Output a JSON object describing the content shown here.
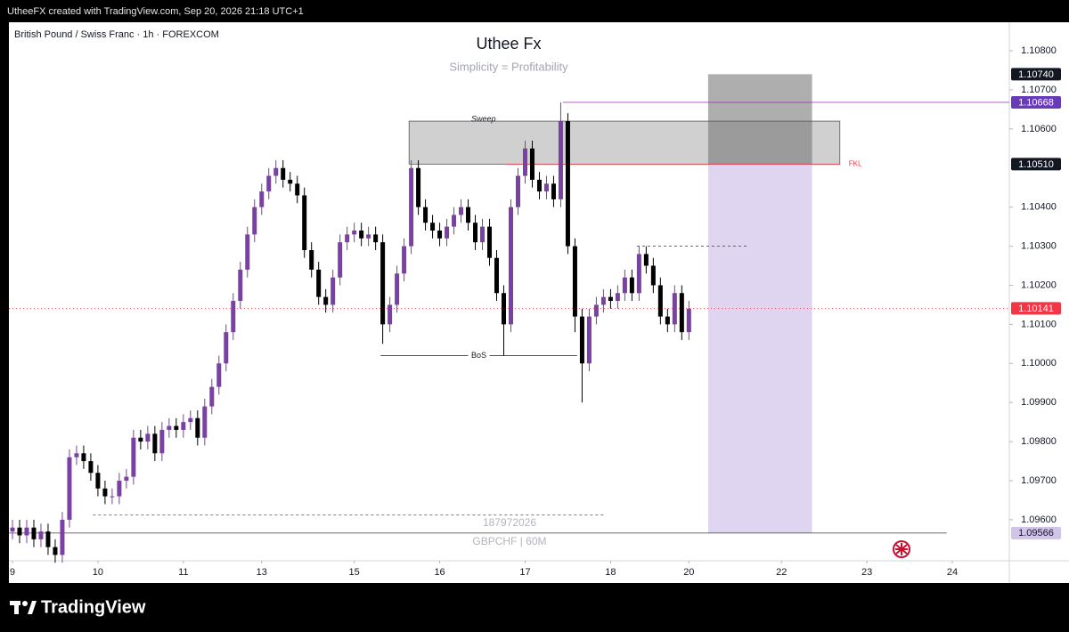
{
  "header": "UtheeFX created with TradingView.com, Sep 20, 2026 21:18 UTC+1",
  "brand": "TradingView",
  "chart_data": {
    "type": "candlestick",
    "symbol": "British Pound / Swiss Franc · 1h · FOREXCOM",
    "title": "Uthee Fx",
    "subtitle": "Simplicity = Profitability",
    "watermark": [
      "187972026",
      "GBPCHF | 60M"
    ],
    "up_color": "#7b3fa6",
    "down_color": "#000000",
    "xlim": [
      -0.5,
      140
    ],
    "xticks": [
      {
        "value": 0,
        "label": "9"
      },
      {
        "value": 12,
        "label": "10"
      },
      {
        "value": 24,
        "label": "11"
      },
      {
        "value": 35,
        "label": "13"
      },
      {
        "value": 48,
        "label": "15"
      },
      {
        "value": 60,
        "label": "16"
      },
      {
        "value": 72,
        "label": "17"
      },
      {
        "value": 84,
        "label": "18"
      },
      {
        "value": 95,
        "label": "20"
      },
      {
        "value": 108,
        "label": "22"
      },
      {
        "value": 120,
        "label": "23"
      },
      {
        "value": 132,
        "label": "24"
      }
    ],
    "ylim": [
      1.09495,
      1.10873
    ],
    "yticks": [
      {
        "value": 1.108,
        "label": "1.10800"
      },
      {
        "value": 1.107,
        "label": "1.10700"
      },
      {
        "value": 1.106,
        "label": "1.10600"
      },
      {
        "value": 1.104,
        "label": "1.10400"
      },
      {
        "value": 1.103,
        "label": "1.10300"
      },
      {
        "value": 1.102,
        "label": "1.10200"
      },
      {
        "value": 1.101,
        "label": "1.10100"
      },
      {
        "value": 1.1,
        "label": "1.10000"
      },
      {
        "value": 1.099,
        "label": "1.09900"
      },
      {
        "value": 1.098,
        "label": "1.09800"
      },
      {
        "value": 1.097,
        "label": "1.09700"
      },
      {
        "value": 1.096,
        "label": "1.09600"
      }
    ],
    "x": [
      0,
      1,
      2,
      3,
      4,
      5,
      6,
      7,
      8,
      9,
      10,
      11,
      12,
      13,
      14,
      15,
      16,
      17,
      18,
      19,
      20,
      21,
      22,
      23,
      24,
      25,
      26,
      27,
      28,
      29,
      30,
      31,
      32,
      33,
      34,
      35,
      36,
      37,
      38,
      39,
      40,
      41,
      42,
      43,
      44,
      45,
      46,
      47,
      48,
      49,
      50,
      51,
      52,
      53,
      54,
      55,
      56,
      57,
      58,
      59,
      60,
      61,
      62,
      63,
      64,
      65,
      66,
      67,
      68,
      69,
      70,
      71,
      72,
      73,
      74,
      75,
      76,
      77,
      78,
      79,
      80,
      81,
      82,
      83,
      84,
      85,
      86,
      87,
      88,
      89,
      90,
      91,
      92,
      93,
      94,
      95
    ],
    "open": [
      1.0957,
      1.0958,
      1.0956,
      1.0958,
      1.0955,
      1.0957,
      1.0953,
      1.0951,
      1.096,
      1.0976,
      1.0977,
      1.0975,
      1.0972,
      1.0968,
      1.0966,
      1.0966,
      1.097,
      1.0971,
      1.0981,
      1.098,
      1.0982,
      1.0977,
      1.0983,
      1.0984,
      1.0983,
      1.0985,
      1.0986,
      1.0981,
      1.0989,
      1.0994,
      1.1,
      1.1008,
      1.1016,
      1.1024,
      1.1033,
      1.104,
      1.1044,
      1.1048,
      1.105,
      1.1047,
      1.1046,
      1.1043,
      1.1029,
      1.1024,
      1.1017,
      1.1015,
      1.1022,
      1.1031,
      1.1033,
      1.1034,
      1.1032,
      1.1033,
      1.1031,
      1.101,
      1.1015,
      1.1023,
      1.103,
      1.105,
      1.104,
      1.1036,
      1.1034,
      1.1032,
      1.1035,
      1.1038,
      1.104,
      1.1036,
      1.1031,
      1.1035,
      1.1027,
      1.1018,
      1.101,
      1.104,
      1.1048,
      1.1055,
      1.1047,
      1.1044,
      1.1046,
      1.1042,
      1.1062,
      1.103,
      1.1012,
      1.1,
      1.1012,
      1.1015,
      1.1017,
      1.1016,
      1.1018,
      1.1022,
      1.1018,
      1.1028,
      1.1025,
      1.102,
      1.1012,
      1.101,
      1.1018,
      1.1008
    ],
    "high": [
      1.096,
      1.096,
      1.096,
      1.096,
      1.0959,
      1.0959,
      1.0955,
      1.0962,
      1.0978,
      1.0979,
      1.0979,
      1.0977,
      1.0974,
      1.097,
      1.0968,
      1.0972,
      1.0973,
      1.0983,
      1.0983,
      1.0984,
      1.0984,
      1.0985,
      1.0986,
      1.0986,
      1.0987,
      1.0988,
      1.0988,
      1.0991,
      1.0996,
      1.1002,
      1.101,
      1.1018,
      1.1026,
      1.1035,
      1.1042,
      1.1046,
      1.105,
      1.1052,
      1.1052,
      1.1049,
      1.1048,
      1.1045,
      1.1031,
      1.1026,
      1.1019,
      1.1024,
      1.1033,
      1.1035,
      1.1036,
      1.1036,
      1.1035,
      1.1035,
      1.1033,
      1.1017,
      1.1025,
      1.1032,
      1.1052,
      1.1052,
      1.1042,
      1.1038,
      1.1036,
      1.1037,
      1.104,
      1.1042,
      1.1042,
      1.1038,
      1.1037,
      1.1037,
      1.1029,
      1.102,
      1.1042,
      1.105,
      1.1057,
      1.1057,
      1.1049,
      1.1048,
      1.1048,
      1.10668,
      1.1064,
      1.1032,
      1.1014,
      1.1014,
      1.1017,
      1.1019,
      1.1019,
      1.102,
      1.1024,
      1.1024,
      1.103,
      1.103,
      1.1027,
      1.1022,
      1.1014,
      1.102,
      1.102,
      1.1016
    ],
    "low": [
      1.0955,
      1.0954,
      1.0954,
      1.0953,
      1.0953,
      1.0951,
      1.0949,
      1.0949,
      1.0958,
      1.0974,
      1.0973,
      1.097,
      1.0966,
      1.0964,
      1.0964,
      1.0964,
      1.0968,
      1.0969,
      1.0978,
      1.0978,
      1.0975,
      1.0975,
      1.0981,
      1.0981,
      1.0981,
      1.0983,
      1.0979,
      1.0979,
      1.0987,
      1.0992,
      1.0998,
      1.1006,
      1.1014,
      1.1022,
      1.1031,
      1.1038,
      1.1042,
      1.1046,
      1.1045,
      1.1044,
      1.1041,
      1.1027,
      1.1022,
      1.1015,
      1.1013,
      1.1013,
      1.102,
      1.1029,
      1.1031,
      1.103,
      1.103,
      1.1029,
      1.1005,
      1.1008,
      1.1013,
      1.1021,
      1.1028,
      1.1038,
      1.1034,
      1.1032,
      1.103,
      1.103,
      1.1033,
      1.1036,
      1.1034,
      1.1029,
      1.1029,
      1.1025,
      1.1016,
      1.1002,
      1.1008,
      1.1038,
      1.1046,
      1.1045,
      1.1042,
      1.1042,
      1.104,
      1.104,
      1.1028,
      1.1008,
      1.099,
      1.0998,
      1.101,
      1.1013,
      1.1014,
      1.1014,
      1.1016,
      1.1016,
      1.1016,
      1.1023,
      1.1018,
      1.101,
      1.1008,
      1.1008,
      1.1006,
      1.1006
    ],
    "close": [
      1.0958,
      1.0956,
      1.0958,
      1.0955,
      1.0957,
      1.0953,
      1.0951,
      1.096,
      1.0976,
      1.0977,
      1.0975,
      1.0972,
      1.0968,
      1.0966,
      1.0966,
      1.097,
      1.0971,
      1.0981,
      1.098,
      1.0982,
      1.0977,
      1.0983,
      1.0984,
      1.0983,
      1.0985,
      1.0986,
      1.0981,
      1.0989,
      1.0994,
      1.1,
      1.1008,
      1.1016,
      1.1024,
      1.1033,
      1.104,
      1.1044,
      1.1048,
      1.105,
      1.1047,
      1.1046,
      1.1043,
      1.1029,
      1.1024,
      1.1017,
      1.1015,
      1.1022,
      1.1031,
      1.1033,
      1.1034,
      1.1032,
      1.1033,
      1.1031,
      1.101,
      1.1015,
      1.1023,
      1.103,
      1.105,
      1.104,
      1.1036,
      1.1034,
      1.1032,
      1.1035,
      1.1038,
      1.104,
      1.1036,
      1.1031,
      1.1035,
      1.1027,
      1.1018,
      1.101,
      1.104,
      1.1048,
      1.1055,
      1.1047,
      1.1044,
      1.1046,
      1.1042,
      1.1062,
      1.103,
      1.1012,
      1.1,
      1.1012,
      1.1015,
      1.1017,
      1.1016,
      1.1018,
      1.1022,
      1.1018,
      1.1028,
      1.1025,
      1.102,
      1.1012,
      1.101,
      1.1018,
      1.1008,
      1.1014
    ],
    "zone": {
      "label": "Sweep",
      "top": 1.1062,
      "bottom": 1.1051
    },
    "levels": [
      {
        "label": "BoS",
        "price": 1.1002
      },
      {
        "label": "FKL",
        "price": 1.1051
      }
    ],
    "lines": [
      1.103,
      1.09612
    ],
    "position": {
      "stop": 1.1074,
      "entry": 1.1051,
      "target": 1.09566
    },
    "price_labels": [
      {
        "value": 1.1074,
        "label": "1.10740",
        "color": "#131722"
      },
      {
        "value": 1.10668,
        "label": "1.10668",
        "color": "#673ab7"
      },
      {
        "value": 1.1051,
        "label": "1.10510",
        "color": "#131722"
      },
      {
        "value": 1.10141,
        "label": "1.10141",
        "color": "#f23645"
      },
      {
        "value": 1.09566,
        "label": "1.09566",
        "color": "#d1c4e9"
      }
    ]
  }
}
